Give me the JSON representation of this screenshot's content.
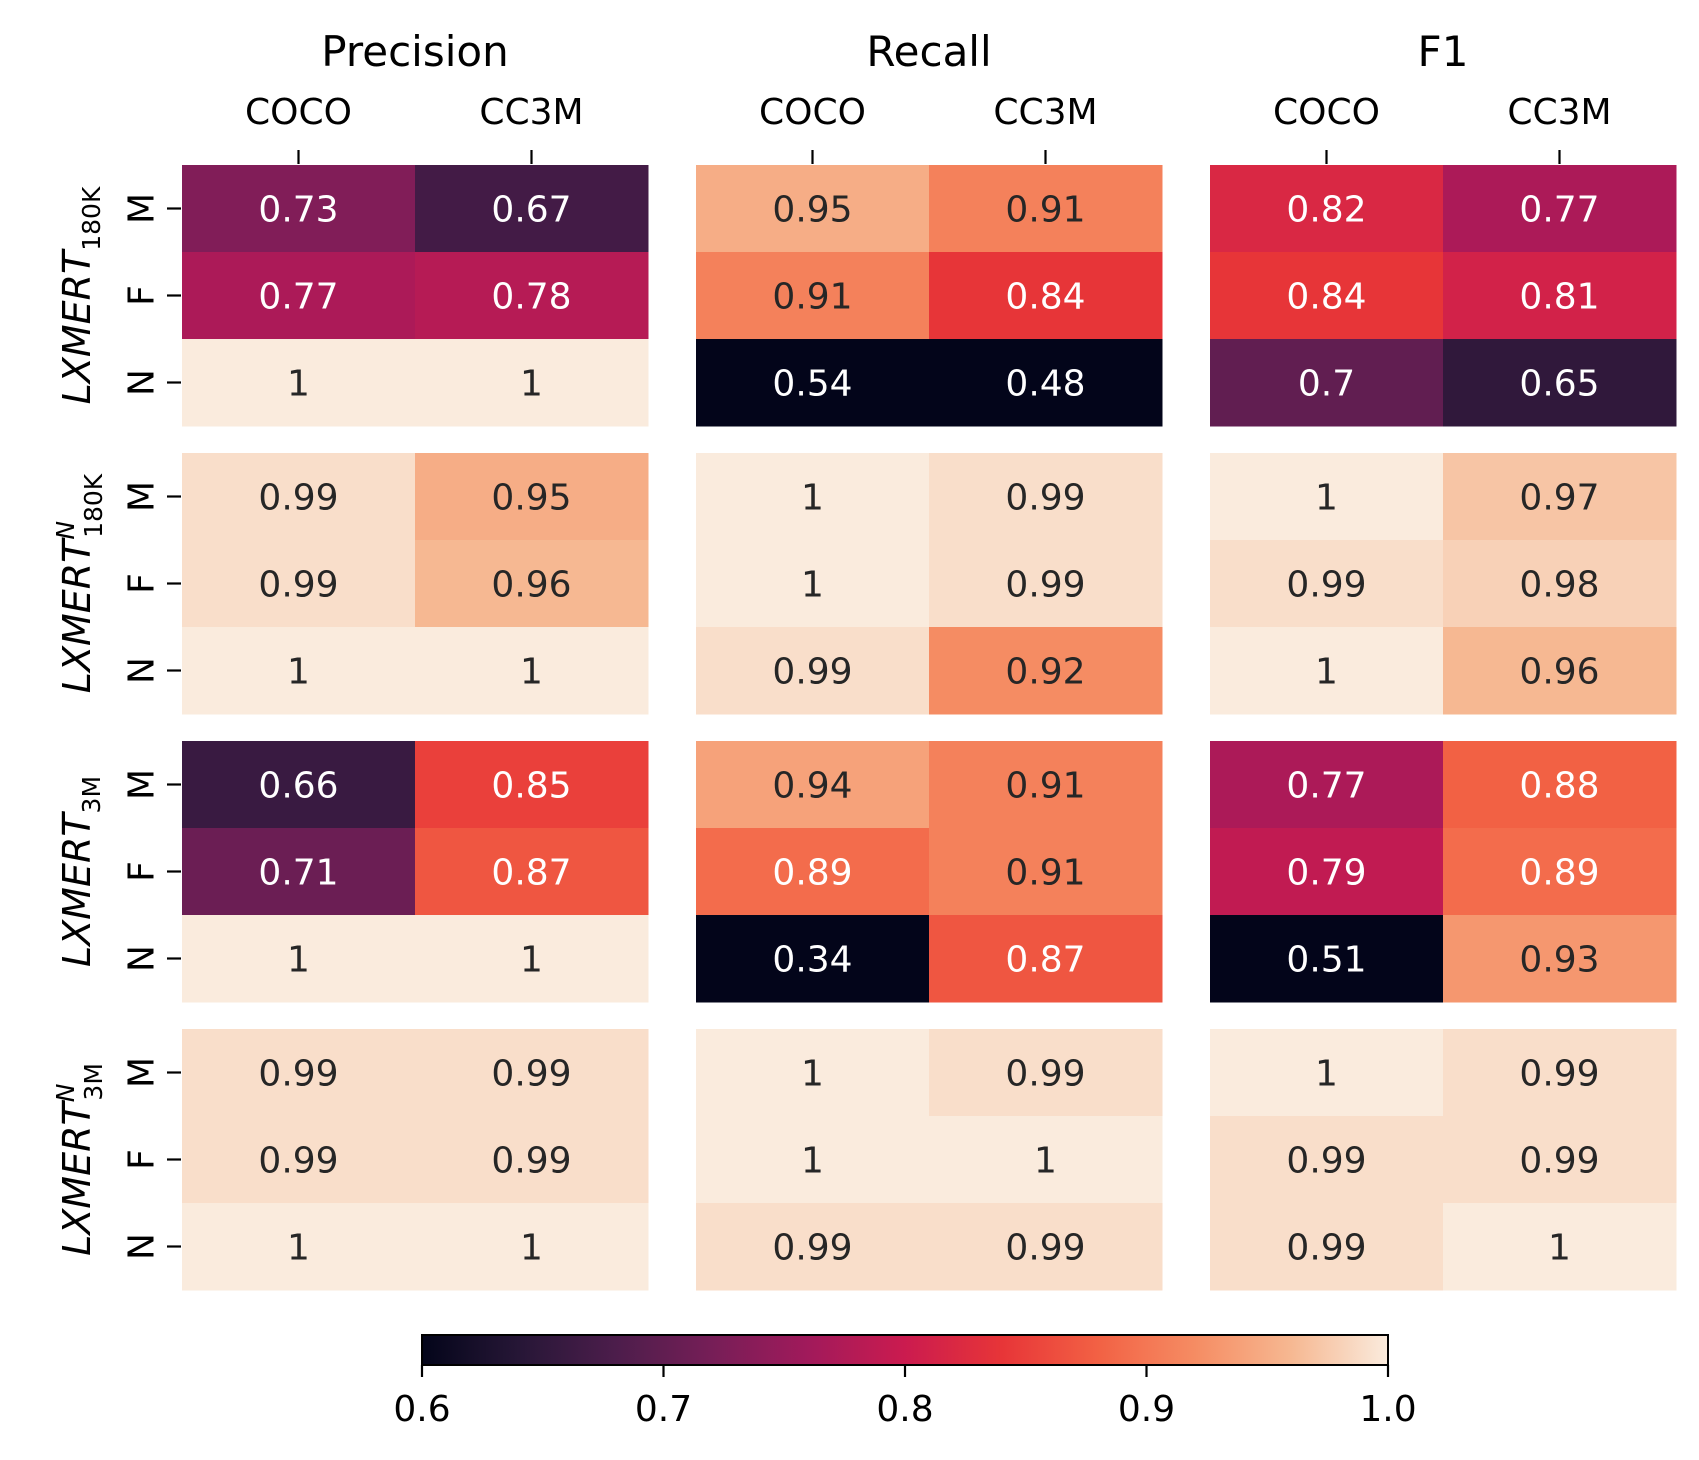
{
  "chart_data": {
    "type": "heatmap",
    "column_groups": [
      "Precision",
      "Recall",
      "F1"
    ],
    "datasets": [
      "COCO",
      "CC3M"
    ],
    "row_labels": [
      "M",
      "F",
      "N"
    ],
    "models": [
      {
        "name": "LXMERT",
        "sub": "180K",
        "sup": ""
      },
      {
        "name": "LXMERT",
        "sub": "180K",
        "sup": "N"
      },
      {
        "name": "LXMERT",
        "sub": "3M",
        "sup": ""
      },
      {
        "name": "LXMERT",
        "sub": "3M",
        "sup": "N"
      }
    ],
    "values": [
      [
        [
          [
            0.73,
            0.67
          ],
          [
            0.77,
            0.78
          ],
          [
            1,
            1
          ]
        ],
        [
          [
            0.95,
            0.91
          ],
          [
            0.91,
            0.84
          ],
          [
            0.54,
            0.48
          ]
        ],
        [
          [
            0.82,
            0.77
          ],
          [
            0.84,
            0.81
          ],
          [
            0.7,
            0.65
          ]
        ]
      ],
      [
        [
          [
            0.99,
            0.95
          ],
          [
            0.99,
            0.96
          ],
          [
            1,
            1
          ]
        ],
        [
          [
            1,
            0.99
          ],
          [
            1,
            0.99
          ],
          [
            0.99,
            0.92
          ]
        ],
        [
          [
            1,
            0.97
          ],
          [
            0.99,
            0.98
          ],
          [
            1,
            0.96
          ]
        ]
      ],
      [
        [
          [
            0.66,
            0.85
          ],
          [
            0.71,
            0.87
          ],
          [
            1,
            1
          ]
        ],
        [
          [
            0.94,
            0.91
          ],
          [
            0.89,
            0.91
          ],
          [
            0.34,
            0.87
          ]
        ],
        [
          [
            0.77,
            0.88
          ],
          [
            0.79,
            0.89
          ],
          [
            0.51,
            0.93
          ]
        ]
      ],
      [
        [
          [
            0.99,
            0.99
          ],
          [
            0.99,
            0.99
          ],
          [
            1,
            1
          ]
        ],
        [
          [
            1,
            0.99
          ],
          [
            1,
            1
          ],
          [
            0.99,
            0.99
          ]
        ],
        [
          [
            1,
            0.99
          ],
          [
            0.99,
            0.99
          ],
          [
            0.99,
            1
          ]
        ]
      ]
    ],
    "colorbar": {
      "colormap": "rocket",
      "vmin": 0.6,
      "vmax": 1.0,
      "ticks": [
        "0.6",
        "0.7",
        "0.8",
        "0.9",
        "1.0"
      ]
    }
  }
}
